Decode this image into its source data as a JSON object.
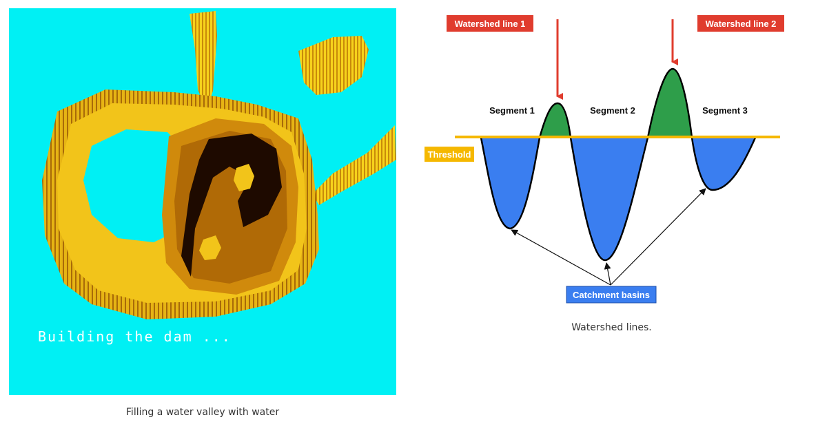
{
  "left_figure": {
    "overlay_text": "Building the dam ...",
    "caption": "Filling a water valley with water",
    "colors": {
      "background": "#00f0f4",
      "rock_light": "#f6d21c",
      "rock_mid": "#d79a0c",
      "rock_dark": "#8a4e08",
      "water_dark": "#1e0a00"
    }
  },
  "right_figure": {
    "labels": {
      "watershed_line_1": "Watershed line 1",
      "watershed_line_2": "Watershed line 2",
      "segment_1": "Segment 1",
      "segment_2": "Segment 2",
      "segment_3": "Segment 3",
      "threshold": "Threshold",
      "catchment_basins": "Catchment basins"
    },
    "caption": "Watershed lines.",
    "colors": {
      "watershed_label_bg": "#e03c2e",
      "threshold": "#f5b800",
      "basin": "#3a7ef0",
      "peak": "#2e9e4a",
      "arrow": "#e03c2e",
      "catchment_label_bg": "#3a7ef0"
    }
  }
}
